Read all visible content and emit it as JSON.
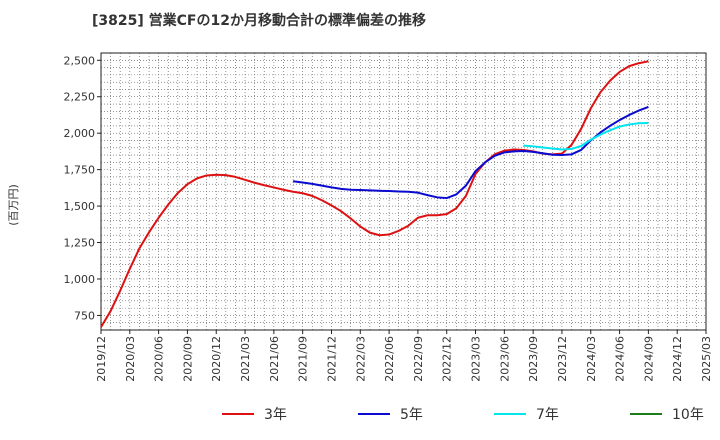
{
  "chart_data": {
    "type": "line",
    "title": "[3825]  営業CFの12か月移動合計の標準偏差の推移",
    "ylabel": "(百万円)",
    "xlabel": "",
    "ylim": [
      650,
      2550
    ],
    "yticks": [
      750,
      1000,
      1250,
      1500,
      1750,
      2000,
      2250,
      2500
    ],
    "ytick_labels": [
      "750",
      "1,000",
      "1,250",
      "1,500",
      "1,750",
      "2,000",
      "2,250",
      "2,500"
    ],
    "xticks": [
      "2019/12",
      "2020/03",
      "2020/06",
      "2020/09",
      "2020/12",
      "2021/03",
      "2021/06",
      "2021/09",
      "2021/12",
      "2022/03",
      "2022/06",
      "2022/09",
      "2022/12",
      "2023/03",
      "2023/06",
      "2023/09",
      "2023/12",
      "2024/03",
      "2024/06",
      "2024/09",
      "2024/12",
      "2025/03"
    ],
    "grid": true,
    "legend_position": "bottom",
    "series": [
      {
        "name": "3年",
        "color": "#dd1111",
        "x": [
          "2019/12",
          "2020/01",
          "2020/02",
          "2020/03",
          "2020/04",
          "2020/05",
          "2020/06",
          "2020/07",
          "2020/08",
          "2020/09",
          "2020/10",
          "2020/11",
          "2020/12",
          "2021/01",
          "2021/02",
          "2021/03",
          "2021/04",
          "2021/05",
          "2021/06",
          "2021/07",
          "2021/08",
          "2021/09",
          "2021/10",
          "2021/11",
          "2021/12",
          "2022/01",
          "2022/02",
          "2022/03",
          "2022/04",
          "2022/05",
          "2022/06",
          "2022/07",
          "2022/08",
          "2022/09",
          "2022/10",
          "2022/11",
          "2022/12",
          "2023/01",
          "2023/02",
          "2023/03",
          "2023/04",
          "2023/05",
          "2023/06",
          "2023/07",
          "2023/08",
          "2023/09",
          "2023/10",
          "2023/11",
          "2023/12",
          "2024/01",
          "2024/02",
          "2024/03",
          "2024/04",
          "2024/05",
          "2024/06",
          "2024/07",
          "2024/08",
          "2024/09"
        ],
        "values": [
          670,
          780,
          920,
          1070,
          1210,
          1320,
          1420,
          1510,
          1590,
          1650,
          1690,
          1710,
          1715,
          1712,
          1700,
          1680,
          1660,
          1643,
          1628,
          1612,
          1598,
          1588,
          1570,
          1540,
          1505,
          1465,
          1415,
          1360,
          1318,
          1300,
          1305,
          1330,
          1365,
          1420,
          1437,
          1437,
          1445,
          1485,
          1570,
          1720,
          1800,
          1855,
          1880,
          1888,
          1885,
          1875,
          1860,
          1855,
          1860,
          1920,
          2030,
          2170,
          2280,
          2360,
          2420,
          2460,
          2480,
          2493
        ]
      },
      {
        "name": "5年",
        "color": "#0a0ad0",
        "x": [
          "2021/08",
          "2021/09",
          "2021/10",
          "2021/11",
          "2021/12",
          "2022/01",
          "2022/02",
          "2022/03",
          "2022/04",
          "2022/05",
          "2022/06",
          "2022/07",
          "2022/08",
          "2022/09",
          "2022/10",
          "2022/11",
          "2022/12",
          "2023/01",
          "2023/02",
          "2023/03",
          "2023/04",
          "2023/05",
          "2023/06",
          "2023/07",
          "2023/08",
          "2023/09",
          "2023/10",
          "2023/11",
          "2023/12",
          "2024/01",
          "2024/02",
          "2024/03",
          "2024/04",
          "2024/05",
          "2024/06",
          "2024/07",
          "2024/08",
          "2024/09"
        ],
        "values": [
          1670,
          1662,
          1652,
          1640,
          1628,
          1618,
          1612,
          1610,
          1608,
          1605,
          1603,
          1600,
          1598,
          1592,
          1575,
          1560,
          1555,
          1580,
          1640,
          1740,
          1800,
          1845,
          1868,
          1875,
          1878,
          1872,
          1862,
          1852,
          1850,
          1855,
          1885,
          1950,
          2005,
          2050,
          2090,
          2125,
          2155,
          2180
        ]
      },
      {
        "name": "7年",
        "color": "#00e5ee",
        "x": [
          "2023/08",
          "2023/09",
          "2023/10",
          "2023/11",
          "2023/12",
          "2024/01",
          "2024/02",
          "2024/03",
          "2024/04",
          "2024/05",
          "2024/06",
          "2024/07",
          "2024/08",
          "2024/09"
        ],
        "values": [
          1915,
          1910,
          1902,
          1895,
          1888,
          1892,
          1912,
          1955,
          1990,
          2020,
          2045,
          2060,
          2068,
          2070
        ]
      },
      {
        "name": "10年",
        "color": "#1a7f1a",
        "x": [],
        "values": []
      }
    ]
  }
}
